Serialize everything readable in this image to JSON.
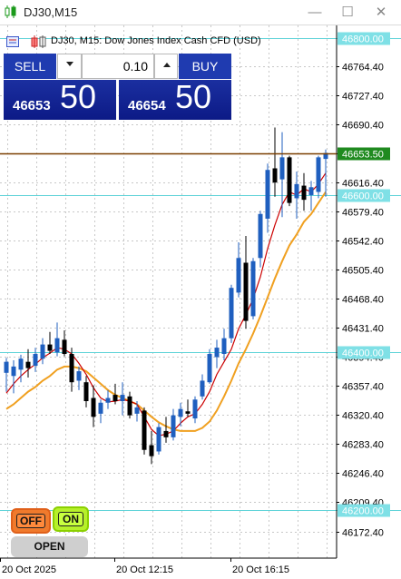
{
  "window": {
    "title": "DJ30,M15",
    "minimize_glyph": "—",
    "maximize_glyph": "☐",
    "close_glyph": "✕"
  },
  "chart_header": {
    "info": "DJ30, M15:  Dow Jones Index Cash CFD (USD)"
  },
  "trade_panel": {
    "sell_label": "SELL",
    "buy_label": "BUY",
    "lot_value": "0.10",
    "sell_price_small": "46653",
    "sell_price_big": "50",
    "buy_price_small": "46654",
    "buy_price_big": "50"
  },
  "buttons": {
    "off_label": "OFF",
    "on_label": "ON",
    "open_label": "OPEN"
  },
  "colors": {
    "bull": "#1f5fbf",
    "bear": "#000000",
    "ma_fast": "#cc0000",
    "ma_slow": "#f0a020",
    "level_line": "#5fd3d8",
    "level_label_bg": "#7fe0e6",
    "current_price_line": "#7a3e00",
    "current_price_bg": "#1f8a1f",
    "panel_blue": "#1f3bb0"
  },
  "chart_data": {
    "type": "candlestick",
    "symbol": "DJ30",
    "timeframe": "M15",
    "y_axis": {
      "min": 46150,
      "max": 46810,
      "ticks": [
        "46764.40",
        "46727.40",
        "46690.40",
        "46653.50",
        "46616.40",
        "46579.40",
        "46542.40",
        "46505.40",
        "46468.40",
        "46431.40",
        "46394.40",
        "46357.40",
        "46320.40",
        "46283.40",
        "46246.40",
        "46209.40",
        "46172.40"
      ]
    },
    "x_axis": {
      "labels": [
        "20 Oct 2025",
        "20 Oct 12:15",
        "20 Oct 16:15"
      ]
    },
    "level_lines": [
      {
        "label": "46800.00",
        "value": 46800
      },
      {
        "label": "46600.00",
        "value": 46600
      },
      {
        "label": "46400.00",
        "value": 46400
      },
      {
        "label": "46200.00",
        "value": 46200
      }
    ],
    "current_price": {
      "label": "46653.50",
      "value": 46653.5
    },
    "candles": [
      {
        "o": 46374,
        "h": 46393,
        "l": 46350,
        "c": 46388
      },
      {
        "o": 46370,
        "h": 46390,
        "l": 46348,
        "c": 46382
      },
      {
        "o": 46378,
        "h": 46397,
        "l": 46362,
        "c": 46392
      },
      {
        "o": 46388,
        "h": 46404,
        "l": 46368,
        "c": 46380
      },
      {
        "o": 46383,
        "h": 46406,
        "l": 46375,
        "c": 46398
      },
      {
        "o": 46392,
        "h": 46418,
        "l": 46385,
        "c": 46410
      },
      {
        "o": 46410,
        "h": 46426,
        "l": 46398,
        "c": 46402
      },
      {
        "o": 46400,
        "h": 46438,
        "l": 46395,
        "c": 46418
      },
      {
        "o": 46416,
        "h": 46428,
        "l": 46395,
        "c": 46398
      },
      {
        "o": 46398,
        "h": 46406,
        "l": 46350,
        "c": 46362
      },
      {
        "o": 46364,
        "h": 46382,
        "l": 46352,
        "c": 46376
      },
      {
        "o": 46362,
        "h": 46370,
        "l": 46330,
        "c": 46338
      },
      {
        "o": 46342,
        "h": 46358,
        "l": 46305,
        "c": 46318
      },
      {
        "o": 46322,
        "h": 46340,
        "l": 46310,
        "c": 46336
      },
      {
        "o": 46336,
        "h": 46352,
        "l": 46328,
        "c": 46342
      },
      {
        "o": 46346,
        "h": 46360,
        "l": 46334,
        "c": 46338
      },
      {
        "o": 46338,
        "h": 46362,
        "l": 46320,
        "c": 46346
      },
      {
        "o": 46344,
        "h": 46350,
        "l": 46316,
        "c": 46320
      },
      {
        "o": 46322,
        "h": 46338,
        "l": 46312,
        "c": 46330
      },
      {
        "o": 46326,
        "h": 46330,
        "l": 46270,
        "c": 46276
      },
      {
        "o": 46282,
        "h": 46300,
        "l": 46258,
        "c": 46268
      },
      {
        "o": 46274,
        "h": 46310,
        "l": 46270,
        "c": 46305
      },
      {
        "o": 46300,
        "h": 46318,
        "l": 46285,
        "c": 46292
      },
      {
        "o": 46292,
        "h": 46328,
        "l": 46288,
        "c": 46320
      },
      {
        "o": 46318,
        "h": 46336,
        "l": 46306,
        "c": 46328
      },
      {
        "o": 46325,
        "h": 46340,
        "l": 46318,
        "c": 46322
      },
      {
        "o": 46316,
        "h": 46344,
        "l": 46310,
        "c": 46340
      },
      {
        "o": 46344,
        "h": 46372,
        "l": 46340,
        "c": 46364
      },
      {
        "o": 46362,
        "h": 46404,
        "l": 46360,
        "c": 46398
      },
      {
        "o": 46394,
        "h": 46416,
        "l": 46380,
        "c": 46406
      },
      {
        "o": 46398,
        "h": 46430,
        "l": 46390,
        "c": 46418
      },
      {
        "o": 46418,
        "h": 46486,
        "l": 46412,
        "c": 46482
      },
      {
        "o": 46476,
        "h": 46540,
        "l": 46470,
        "c": 46520
      },
      {
        "o": 46514,
        "h": 46548,
        "l": 46430,
        "c": 46440
      },
      {
        "o": 46446,
        "h": 46520,
        "l": 46442,
        "c": 46516
      },
      {
        "o": 46520,
        "h": 46580,
        "l": 46508,
        "c": 46576
      },
      {
        "o": 46570,
        "h": 46640,
        "l": 46552,
        "c": 46632
      },
      {
        "o": 46634,
        "h": 46686,
        "l": 46598,
        "c": 46616
      },
      {
        "o": 46620,
        "h": 46680,
        "l": 46572,
        "c": 46648
      },
      {
        "o": 46648,
        "h": 46650,
        "l": 46586,
        "c": 46590
      },
      {
        "o": 46596,
        "h": 46630,
        "l": 46570,
        "c": 46614
      },
      {
        "o": 46612,
        "h": 46628,
        "l": 46580,
        "c": 46594
      },
      {
        "o": 46600,
        "h": 46618,
        "l": 46580,
        "c": 46610
      },
      {
        "o": 46604,
        "h": 46650,
        "l": 46596,
        "c": 46648
      },
      {
        "o": 46646,
        "h": 46658,
        "l": 46598,
        "c": 46653.5
      }
    ],
    "ma_fast": [
      46348,
      46360,
      46370,
      46378,
      46385,
      46393,
      46399,
      46406,
      46404,
      46398,
      46386,
      46372,
      46355,
      46342,
      46337,
      46338,
      46340,
      46338,
      46334,
      46318,
      46302,
      46294,
      46296,
      46300,
      46310,
      46318,
      46322,
      46334,
      46350,
      46372,
      46388,
      46404,
      46430,
      46448,
      46468,
      46496,
      46532,
      46562,
      46588,
      46604,
      46600,
      46608,
      46604,
      46614,
      46628
    ],
    "ma_slow": [
      46328,
      46334,
      46342,
      46350,
      46356,
      46364,
      46370,
      46378,
      46382,
      46382,
      46380,
      46376,
      46368,
      46360,
      46352,
      46346,
      46342,
      46338,
      46334,
      46326,
      46318,
      46311,
      46306,
      46302,
      46300,
      46300,
      46300,
      46304,
      46312,
      46326,
      46344,
      46364,
      46386,
      46404,
      46424,
      46446,
      46470,
      46494,
      46516,
      46536,
      46550,
      46566,
      46576,
      46590,
      46604
    ]
  }
}
